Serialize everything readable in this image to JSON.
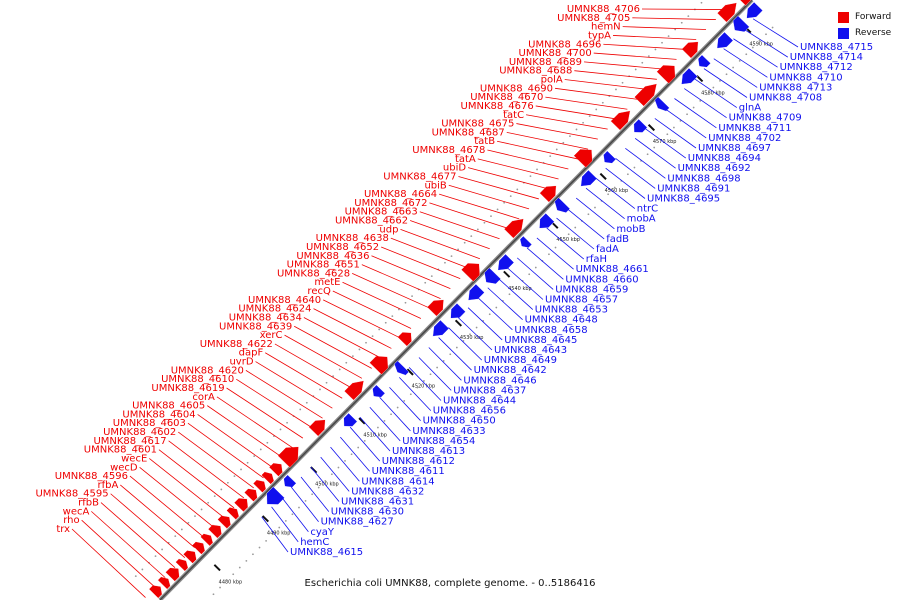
{
  "caption": "Escherichia coli UMNK88, complete genome. - 0..5186416",
  "legend": {
    "forward": {
      "label": "Forward",
      "color": "#ee0000"
    },
    "reverse": {
      "label": "Reverse",
      "color": "#1010ee"
    }
  },
  "axis_ticks": [
    "4480 kbp",
    "4490 kbp",
    "4500 kbp",
    "4510 kbp",
    "4520 kbp",
    "4530 kbp",
    "4540 kbp",
    "4550 kbp",
    "4560 kbp",
    "4570 kbp",
    "4580 kbp",
    "4590 kbp"
  ],
  "forward_labels": [
    "UMNK88_4706",
    "UMNK88_4705",
    "hemN",
    "typA",
    "UMNK88_4696",
    "UMNK88_4700",
    "UMNK88_4689",
    "UMNK88_4688",
    "polA",
    "UMNK88_4690",
    "UMNK88_4670",
    "UMNK88_4676",
    "tatC",
    "UMNK88_4675",
    "UMNK88_4687",
    "tatB",
    "UMNK88_4678",
    "tatA",
    "ubiD",
    "UMNK88_4677",
    "ubiB",
    "UMNK88_4664",
    "UMNK88_4672",
    "UMNK88_4663",
    "UMNK88_4662",
    "udp",
    "UMNK88_4638",
    "UMNK88_4652",
    "UMNK88_4636",
    "UMNK88_4651",
    "UMNK88_4628",
    "metE",
    "recQ",
    "UMNK88_4640",
    "UMNK88_4624",
    "UMNK88_4634",
    "UMNK88_4639",
    "xerC",
    "UMNK88_4622",
    "dapF",
    "uvrD",
    "UMNK88_4620",
    "UMNK88_4610",
    "UMNK88_4619",
    "corA",
    "UMNK88_4605",
    "UMNK88_4604",
    "UMNK88_4603",
    "UMNK88_4602",
    "UMNK88_4617",
    "UMNK88_4601",
    "wecE",
    "wecD",
    "UMNK88_4596",
    "rfbA",
    "UMNK88_4595",
    "rfbB",
    "wecA",
    "rho",
    "trx"
  ],
  "reverse_labels": [
    "UMNK88_4715",
    "UMNK88_4714",
    "UMNK88_4712",
    "UMNK88_4710",
    "UMNK88_4713",
    "UMNK88_4708",
    "glnA",
    "UMNK88_4709",
    "UMNK88_4711",
    "UMNK88_4702",
    "UMNK88_4697",
    "UMNK88_4694",
    "UMNK88_4692",
    "UMNK88_4698",
    "UMNK88_4691",
    "UMNK88_4695",
    "ntrC",
    "mobA",
    "mobB",
    "fadB",
    "fadA",
    "rfaH",
    "UMNK88_4661",
    "UMNK88_4660",
    "UMNK88_4659",
    "UMNK88_4657",
    "UMNK88_4653",
    "UMNK88_4648",
    "UMNK88_4658",
    "UMNK88_4645",
    "UMNK88_4643",
    "UMNK88_4649",
    "UMNK88_4642",
    "UMNK88_4646",
    "UMNK88_4637",
    "UMNK88_4644",
    "UMNK88_4656",
    "UMNK88_4650",
    "UMNK88_4633",
    "UMNK88_4654",
    "UMNK88_4613",
    "UMNK88_4612",
    "UMNK88_4611",
    "UMNK88_4614",
    "UMNK88_4632",
    "UMNK88_4631",
    "UMNK88_4630",
    "UMNK88_4627",
    "cyaY",
    "hemC",
    "UMNK88_4615"
  ]
}
